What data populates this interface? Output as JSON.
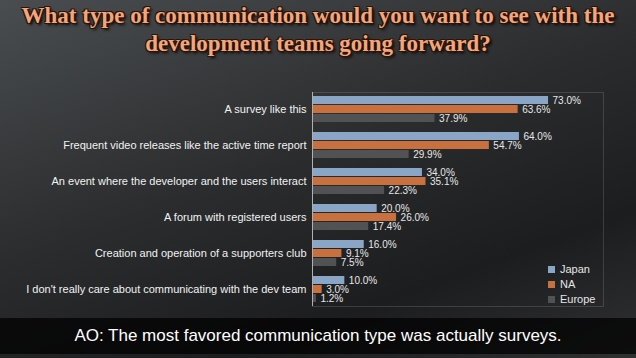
{
  "chart_data": {
    "type": "bar",
    "title": "What type of communication would you want to see with the development teams going forward?",
    "caption": "AO: The most favored communication type was actually surveys.",
    "orientation": "horizontal",
    "categories": [
      "A survey like this",
      "Frequent video releases like the active time report",
      "An event where the developer and the users interact",
      "A forum with registered users",
      "Creation and operation of a supporters club",
      "I don't really care about communicating with the dev team"
    ],
    "series": [
      {
        "name": "Japan",
        "color": "#8aa6c6",
        "values": [
          73.0,
          64.0,
          34.0,
          20.0,
          16.0,
          10.0
        ],
        "value_labels": [
          "73.0%",
          "64.0%",
          "34.0%",
          "20.0%",
          "16.0%",
          "10.0%"
        ]
      },
      {
        "name": "NA",
        "color": "#c9713e",
        "values": [
          63.6,
          54.7,
          35.1,
          26.0,
          9.1,
          3.0
        ],
        "value_labels": [
          "63.6%",
          "54.7%",
          "35.1%",
          "26.0%",
          "9.1%",
          "3.0%"
        ]
      },
      {
        "name": "Europe",
        "color": "#505254",
        "values": [
          37.9,
          29.9,
          22.3,
          17.4,
          7.5,
          1.2
        ],
        "value_labels": [
          "37.9%",
          "29.9%",
          "22.3%",
          "17.4%",
          "7.5%",
          "1.2%"
        ]
      }
    ],
    "xlim": [
      0,
      90
    ],
    "xticks": [],
    "tick_labels": "y",
    "data_labels": true,
    "legend": "lower right",
    "grid": false
  }
}
